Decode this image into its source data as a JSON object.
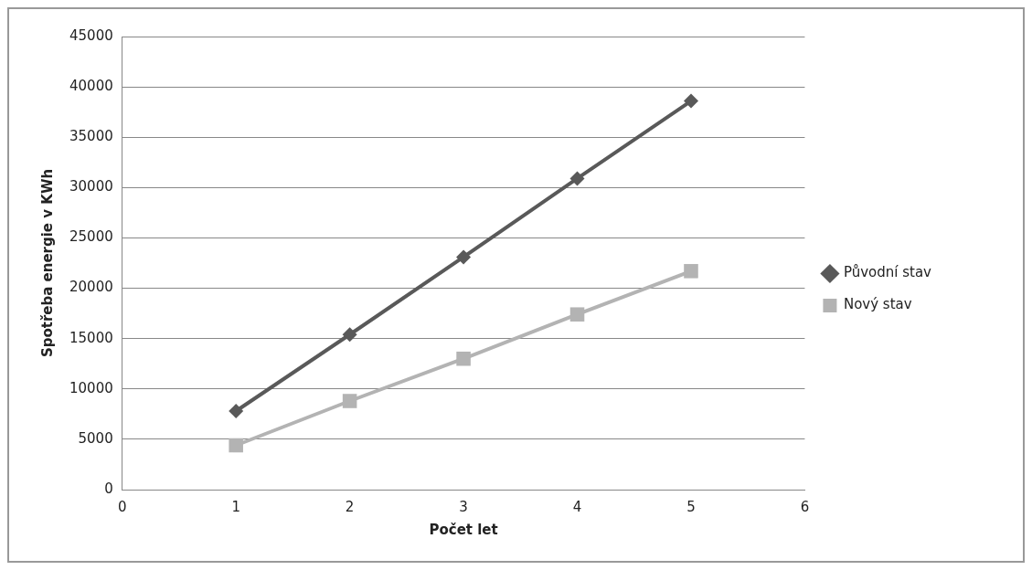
{
  "chart_data": {
    "type": "line",
    "xlabel": "Počet let",
    "ylabel": "Spotřeba energie v KWh",
    "x": [
      1,
      2,
      3,
      4,
      5
    ],
    "series": [
      {
        "name": "Původní stav",
        "color": "#595959",
        "marker": "diamond",
        "values": [
          7800,
          15400,
          23100,
          30900,
          38600
        ]
      },
      {
        "name": "Nový stav",
        "color": "#b3b3b3",
        "marker": "square",
        "values": [
          4400,
          8800,
          13000,
          17400,
          21700
        ]
      }
    ],
    "xlim": [
      0,
      6
    ],
    "xticks": [
      0,
      1,
      2,
      3,
      4,
      5,
      6
    ],
    "ylim": [
      0,
      45000
    ],
    "yticks": [
      0,
      5000,
      10000,
      15000,
      20000,
      25000,
      30000,
      35000,
      40000,
      45000
    ],
    "grid": "y",
    "legend": "right"
  }
}
